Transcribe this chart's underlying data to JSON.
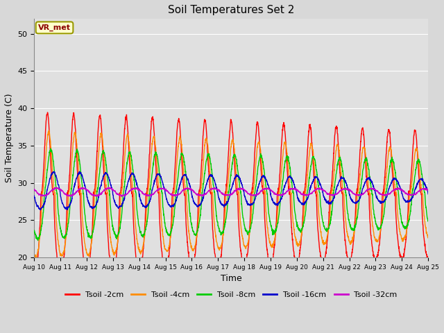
{
  "title": "Soil Temperatures Set 2",
  "xlabel": "Time",
  "ylabel": "Soil Temperature (C)",
  "ylim": [
    20,
    52
  ],
  "xlim": [
    0,
    15
  ],
  "yticks": [
    20,
    25,
    30,
    35,
    40,
    45,
    50
  ],
  "xtick_labels": [
    "Aug 10",
    "Aug 11",
    "Aug 12",
    "Aug 13",
    "Aug 14",
    "Aug 15",
    "Aug 16",
    "Aug 17",
    "Aug 18",
    "Aug 19",
    "Aug 20",
    "Aug 21",
    "Aug 22",
    "Aug 23",
    "Aug 24",
    "Aug 25"
  ],
  "background_color": "#d8d8d8",
  "plot_bg_color": "#e0e0e0",
  "grid_color": "#ffffff",
  "series": [
    {
      "label": "Tsoil -2cm",
      "color": "#ff0000"
    },
    {
      "label": "Tsoil -4cm",
      "color": "#ff8c00"
    },
    {
      "label": "Tsoil -8cm",
      "color": "#00cc00"
    },
    {
      "label": "Tsoil -16cm",
      "color": "#0000cc"
    },
    {
      "label": "Tsoil -32cm",
      "color": "#cc00cc"
    }
  ],
  "annotation_text": "VR_met",
  "base_temp": 28.5,
  "amp2_start": 11.0,
  "amp2_end": 8.5,
  "amp4_start": 8.5,
  "amp4_end": 6.0,
  "amp8_start": 6.0,
  "amp8_end": 4.5,
  "amp16_start": 2.5,
  "amp16_end": 1.5,
  "amp32_start": 0.5,
  "amp32_end": 0.4,
  "phase2": 0.25,
  "phase4": 0.3,
  "phase8": 0.38,
  "phase16": 0.48,
  "phase32": 0.6
}
